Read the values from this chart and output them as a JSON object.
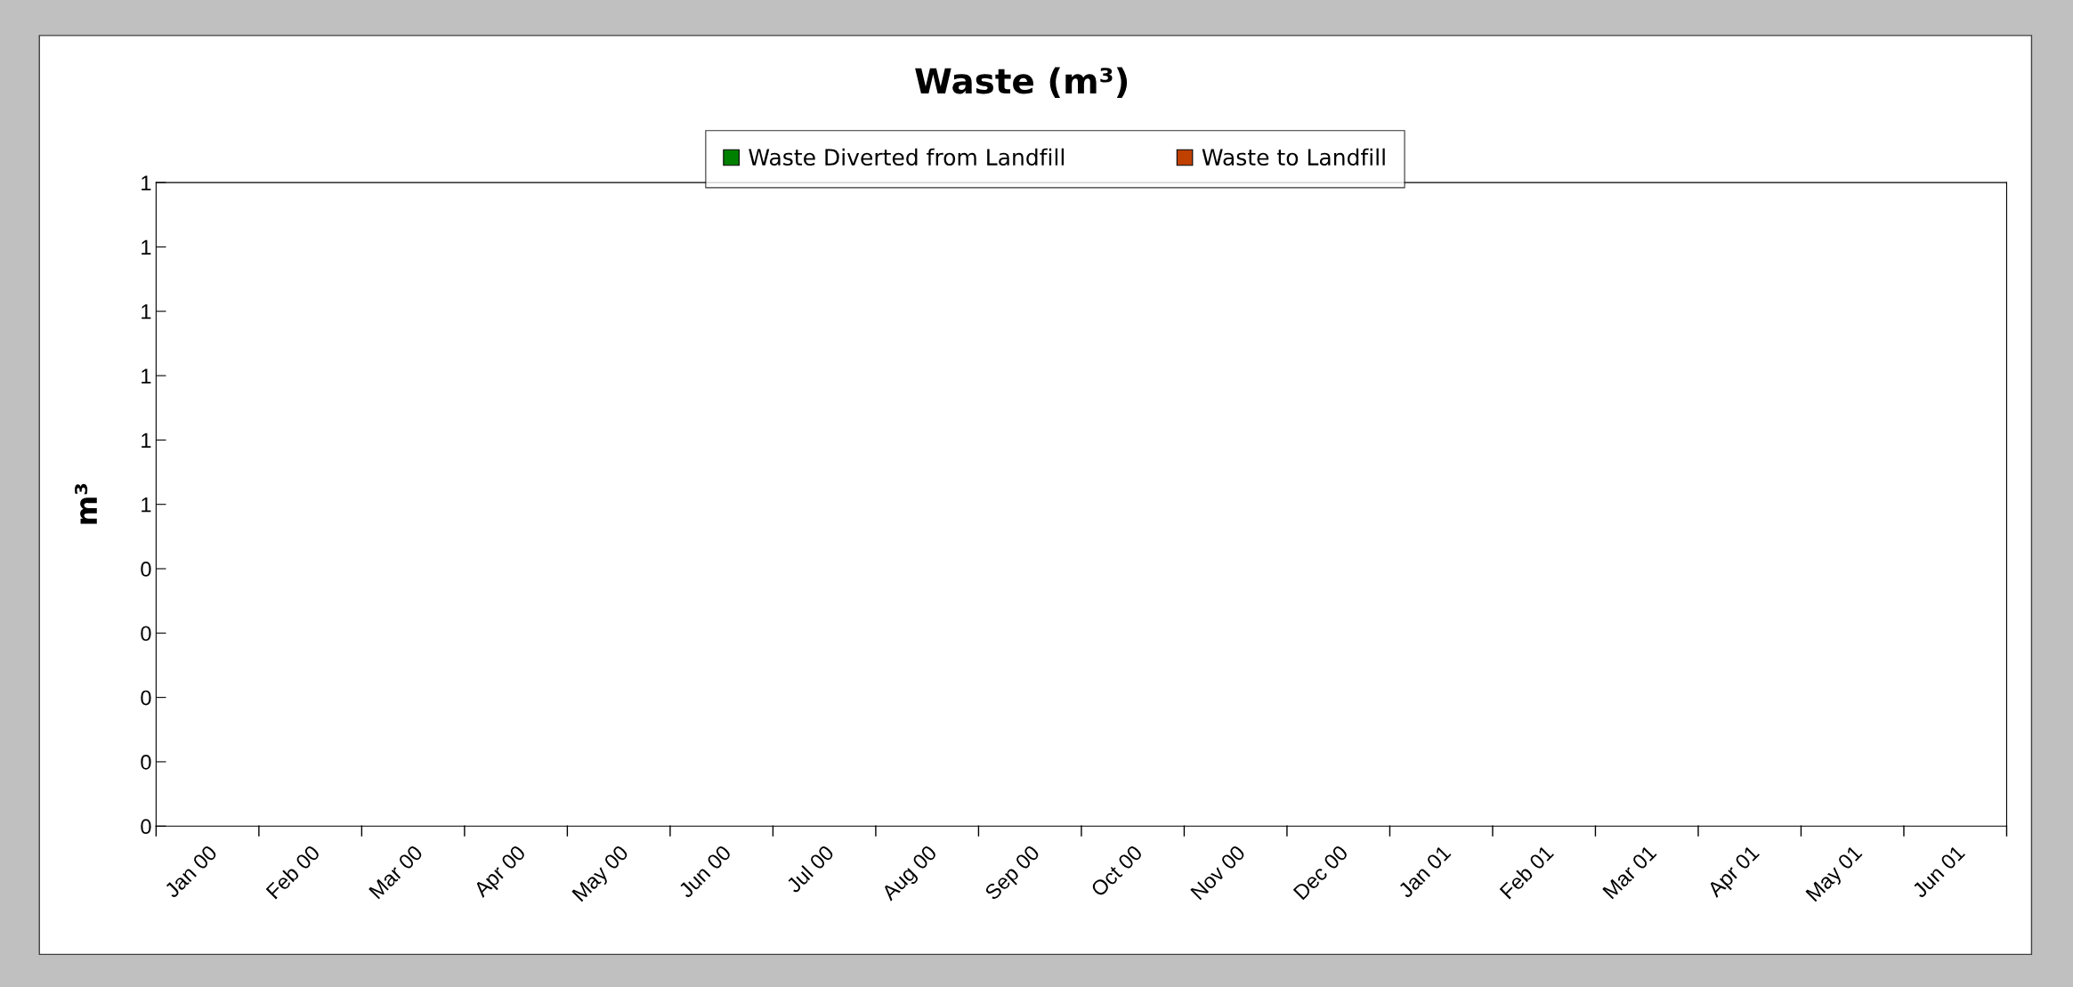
{
  "chart_data": {
    "type": "bar",
    "title": "Waste (m³)",
    "ylabel": "m³",
    "legend": "top",
    "categories": [
      "Jan 00",
      "Feb 00",
      "Mar 00",
      "Apr 00",
      "May 00",
      "Jun 00",
      "Jul 00",
      "Aug 00",
      "Sep 00",
      "Oct 00",
      "Nov 00",
      "Dec 00",
      "Jan 01",
      "Feb 01",
      "Mar 01",
      "Apr 01",
      "May 01",
      "Jun 01"
    ],
    "series": [
      {
        "name": "Waste Diverted from Landfill",
        "color": "#008000",
        "values": [
          null,
          null,
          null,
          null,
          null,
          null,
          null,
          null,
          null,
          null,
          null,
          null,
          null,
          null,
          null,
          null,
          null,
          null
        ]
      },
      {
        "name": "Waste to Landfill",
        "color": "#c04000",
        "values": [
          null,
          null,
          null,
          null,
          null,
          null,
          null,
          null,
          null,
          null,
          null,
          null,
          null,
          null,
          null,
          null,
          null,
          null
        ]
      }
    ],
    "ylim": [
      0,
      1
    ],
    "yticks": [
      0,
      {
        "value": 0.1,
        "label": "0"
      },
      {
        "value": 0.2,
        "label": "0"
      },
      {
        "value": 0.3,
        "label": "0"
      },
      {
        "value": 0.4,
        "label": "0"
      },
      {
        "value": 0.5,
        "label": "1"
      },
      {
        "value": 0.6,
        "label": "1"
      },
      {
        "value": 0.7,
        "label": "1"
      },
      {
        "value": 0.8,
        "label": "1"
      },
      {
        "value": 0.9,
        "label": "1"
      },
      1
    ]
  }
}
